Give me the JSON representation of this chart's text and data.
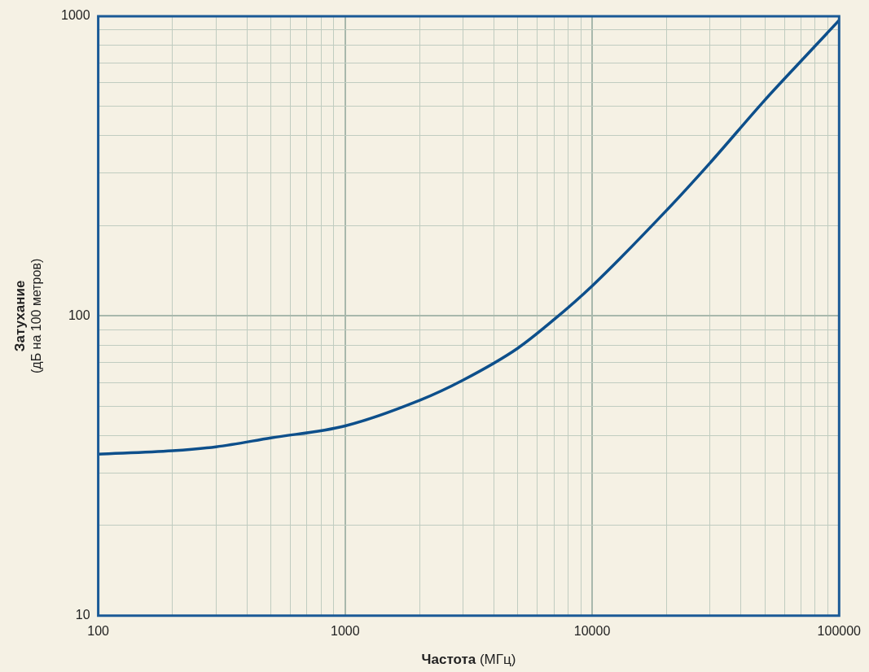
{
  "chart_data": {
    "type": "line",
    "xlabel": "Частота (МГц)",
    "ylabel": "Затухание (дБ на 100 метров)",
    "log": "xy",
    "grid": true,
    "legend": false,
    "marker": "none",
    "line_style": "solid",
    "x": [
      100,
      200,
      300,
      500,
      1000,
      2000,
      3000,
      5000,
      7000,
      10000,
      20000,
      30000,
      50000,
      70000,
      100000
    ],
    "series": [
      {
        "color": "#0d4f8b",
        "values": [
          34.6,
          35.5,
          36.6,
          39.2,
          43,
          52.3,
          61.1,
          78.1,
          97.2,
          126,
          225,
          324,
          525,
          708,
          969
        ]
      }
    ],
    "xlim": [
      100,
      100000
    ],
    "ylim": [
      10,
      1000
    ],
    "xticks": [
      100,
      {
        "value": 200,
        "label": null
      },
      {
        "value": 300,
        "label": null
      },
      {
        "value": 400,
        "label": null
      },
      {
        "value": 500,
        "label": null
      },
      {
        "value": 600,
        "label": null
      },
      {
        "value": 700,
        "label": null
      },
      {
        "value": 800,
        "label": null
      },
      {
        "value": 900,
        "label": null
      },
      1000,
      {
        "value": 2000,
        "label": null
      },
      {
        "value": 3000,
        "label": null
      },
      {
        "value": 4000,
        "label": null
      },
      {
        "value": 5000,
        "label": null
      },
      {
        "value": 6000,
        "label": null
      },
      {
        "value": 7000,
        "label": null
      },
      {
        "value": 8000,
        "label": null
      },
      {
        "value": 9000,
        "label": null
      },
      10000,
      {
        "value": 20000,
        "label": null
      },
      {
        "value": 30000,
        "label": null
      },
      {
        "value": 40000,
        "label": null
      },
      {
        "value": 50000,
        "label": null
      },
      {
        "value": 60000,
        "label": null
      },
      {
        "value": 70000,
        "label": null
      },
      {
        "value": 80000,
        "label": null
      },
      {
        "value": 90000,
        "label": null
      },
      100000
    ],
    "yticks": [
      10,
      {
        "value": 20,
        "label": null
      },
      {
        "value": 30,
        "label": null
      },
      {
        "value": 40,
        "label": null
      },
      {
        "value": 50,
        "label": null
      },
      {
        "value": 60,
        "label": null
      },
      {
        "value": 70,
        "label": null
      },
      {
        "value": 80,
        "label": null
      },
      {
        "value": 90,
        "label": null
      },
      100,
      {
        "value": 200,
        "label": null
      },
      {
        "value": 300,
        "label": null
      },
      {
        "value": 400,
        "label": null
      },
      {
        "value": 500,
        "label": null
      },
      {
        "value": 600,
        "label": null
      },
      {
        "value": 700,
        "label": null
      },
      {
        "value": 800,
        "label": null
      },
      {
        "value": 900,
        "label": null
      },
      1000
    ]
  }
}
